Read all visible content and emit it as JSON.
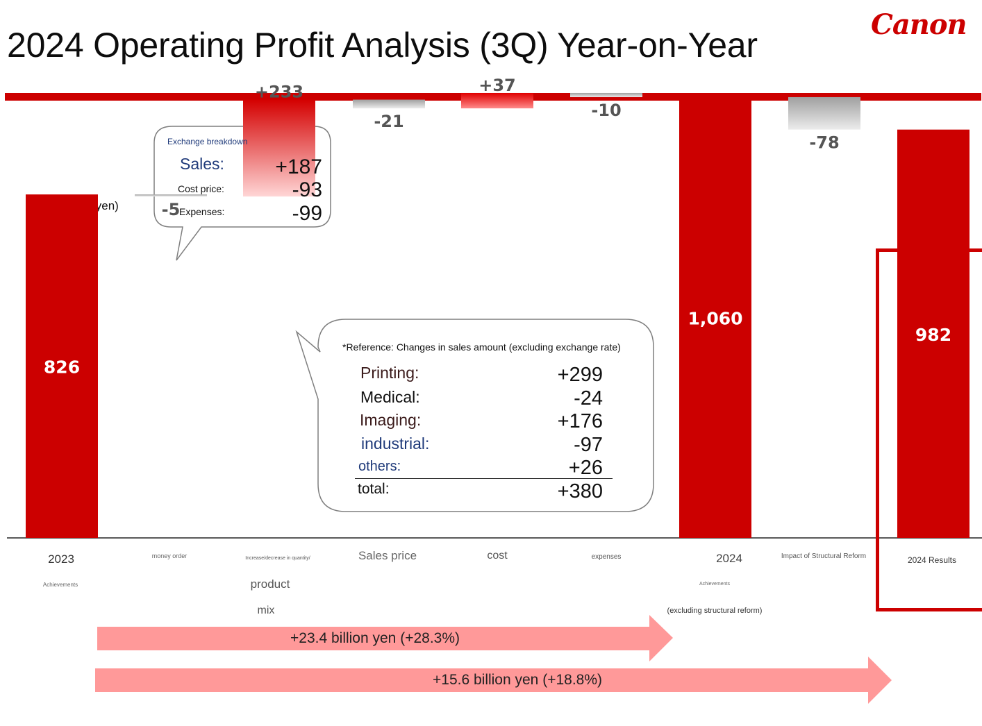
{
  "title": "2024 Operating Profit Analysis (3Q) Year-on-Year",
  "logo": "Canon",
  "unit_label": "(Billion yen)",
  "colors": {
    "accent": "#cc0000",
    "negative": "#a6a6a6",
    "arrow": "#ff9999"
  },
  "exchange_breakdown": {
    "title": "Exchange breakdown",
    "rows": [
      {
        "label": "Sales:",
        "value": "+187"
      },
      {
        "label": "Cost price:",
        "value": "-93"
      },
      {
        "label": "Expenses:",
        "value": "-99"
      }
    ]
  },
  "reference": {
    "title": "*Reference: Changes in sales amount (excluding exchange rate)",
    "rows": [
      {
        "label": "Printing:",
        "value": "+299"
      },
      {
        "label": "Medical:",
        "value": "-24"
      },
      {
        "label": "Imaging:",
        "value": "+176"
      },
      {
        "label": "industrial:",
        "value": "-97"
      },
      {
        "label": "others:",
        "value": "+26"
      }
    ],
    "total": {
      "label": "total:",
      "value": "+380"
    }
  },
  "category_labels": {
    "y2023": "2023",
    "y2023_sub": "Achievements",
    "fx": "money order",
    "volume": "Increase/decrease in quantity/",
    "volume_sub1": "product",
    "volume_sub2": "mix",
    "price": "Sales price",
    "cost": "cost",
    "expenses": "expenses",
    "y2024": "2024",
    "y2024_sub": "Achievements",
    "y2024_sub2": "(excluding structural reform)",
    "reform": "Impact of Structural Reform",
    "results": "2024 Results"
  },
  "arrows": {
    "first": "+23.4 billion yen (+28.3%)",
    "second": "+15.6 billion yen (+18.8%)"
  },
  "chart_data": {
    "type": "bar",
    "subtype": "waterfall",
    "categories": [
      "2023",
      "money order",
      "Increase/decrease in quantity/ product mix",
      "Sales price",
      "cost",
      "expenses",
      "2024",
      "Impact of Structural Reform",
      "2024 Results"
    ],
    "steps": [
      {
        "kind": "total",
        "value": 826,
        "label": "826"
      },
      {
        "kind": "delta",
        "value": -5,
        "label": "-5"
      },
      {
        "kind": "delta",
        "value": 233,
        "label": "+233"
      },
      {
        "kind": "delta",
        "value": -21,
        "label": "-21"
      },
      {
        "kind": "delta",
        "value": 37,
        "label": "+37"
      },
      {
        "kind": "delta",
        "value": -10,
        "label": "-10"
      },
      {
        "kind": "total",
        "value": 1060,
        "label": "1,060"
      },
      {
        "kind": "delta",
        "value": -78,
        "label": "-78"
      },
      {
        "kind": "total",
        "value": 982,
        "label": "982"
      }
    ],
    "ylim": [
      0,
      1100
    ],
    "grid": false,
    "ylabel": "(Billion yen)"
  }
}
